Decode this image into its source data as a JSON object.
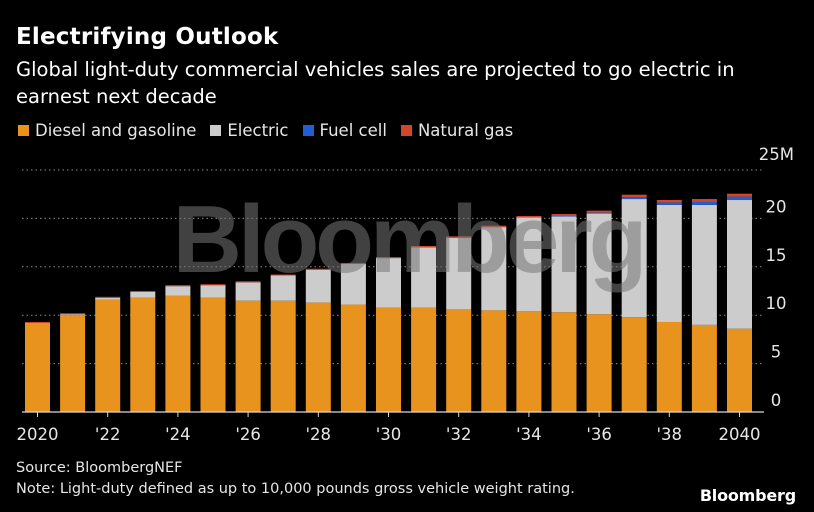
{
  "title": "Electrifying Outlook",
  "subtitle": "Global light-duty commercial vehicles sales are projected to go electric in earnest next decade",
  "legend": [
    {
      "label": "Diesel and gasoline",
      "color": "#e8931e"
    },
    {
      "label": "Electric",
      "color": "#cccccc"
    },
    {
      "label": "Fuel cell",
      "color": "#1f5fd1"
    },
    {
      "label": "Natural gas",
      "color": "#d4462a"
    }
  ],
  "unit_label": "25M",
  "source": "Source: BloombergNEF",
  "note": "Note: Light-duty defined as up to 10,000 pounds gross vehicle weight rating.",
  "brand": "Bloomberg",
  "watermark": "Bloomberg",
  "chart_data": {
    "type": "bar",
    "stacked": true,
    "x": [
      2020,
      2021,
      2022,
      2023,
      2024,
      2025,
      2026,
      2027,
      2028,
      2029,
      2030,
      2031,
      2032,
      2033,
      2034,
      2035,
      2036,
      2037,
      2038,
      2039,
      2040
    ],
    "xtick_labels": [
      "2020",
      "'22",
      "'24",
      "'26",
      "'28",
      "'30",
      "'32",
      "'34",
      "'36",
      "'38",
      "2040"
    ],
    "xtick_values": [
      2020,
      2022,
      2024,
      2026,
      2028,
      2030,
      2032,
      2034,
      2036,
      2038,
      2040
    ],
    "ylim": [
      0,
      25
    ],
    "yticks": [
      0,
      5,
      10,
      15,
      20
    ],
    "ytick_labels": [
      "0",
      "5",
      "10",
      "15",
      "20"
    ],
    "grid": true,
    "series": [
      {
        "name": "Diesel and gasoline",
        "color": "#e8931e",
        "values": [
          9.2,
          10.0,
          11.6,
          11.8,
          12.0,
          11.8,
          11.5,
          11.5,
          11.3,
          11.1,
          10.8,
          10.8,
          10.6,
          10.5,
          10.4,
          10.3,
          10.1,
          9.8,
          9.3,
          9.0,
          8.6
        ]
      },
      {
        "name": "Electric",
        "color": "#cccccc",
        "values": [
          0.0,
          0.1,
          0.2,
          0.6,
          1.0,
          1.3,
          1.9,
          2.6,
          3.4,
          4.2,
          5.1,
          6.2,
          7.4,
          8.6,
          9.7,
          9.9,
          10.4,
          12.2,
          12.1,
          12.4,
          13.3
        ]
      },
      {
        "name": "Fuel cell",
        "color": "#1f5fd1",
        "values": [
          0.0,
          0.0,
          0.0,
          0.0,
          0.0,
          0.0,
          0.0,
          0.0,
          0.0,
          0.0,
          0.0,
          0.0,
          0.0,
          0.0,
          0.0,
          0.05,
          0.1,
          0.2,
          0.25,
          0.3,
          0.35
        ]
      },
      {
        "name": "Natural gas",
        "color": "#d4462a",
        "values": [
          0.1,
          0.1,
          0.1,
          0.1,
          0.1,
          0.1,
          0.1,
          0.1,
          0.1,
          0.1,
          0.1,
          0.15,
          0.15,
          0.15,
          0.15,
          0.2,
          0.2,
          0.25,
          0.25,
          0.3,
          0.3
        ]
      }
    ]
  }
}
